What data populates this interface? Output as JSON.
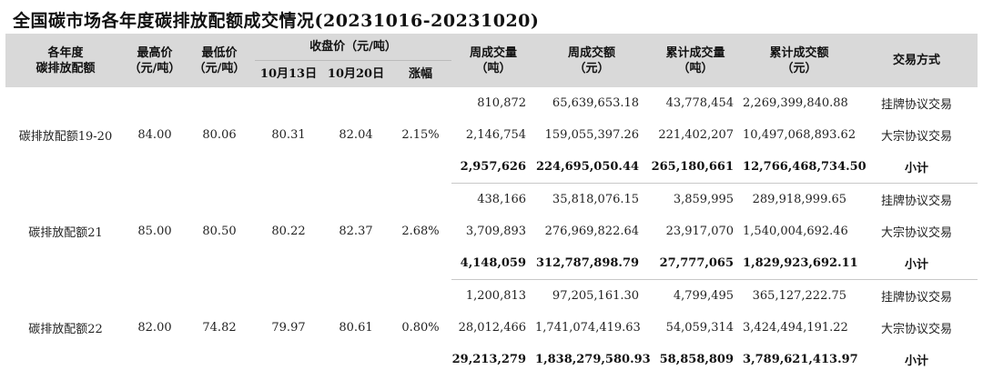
{
  "title": "全国碳市场各年度碳排放配额成交情况(20231016-20231020)",
  "headers": {
    "vintage": [
      "各年度",
      "碳排放配额"
    ],
    "high": [
      "最高价",
      "（元/吨）"
    ],
    "low": [
      "最低价",
      "（元/吨）"
    ],
    "close_group": "收盘价（元/吨）",
    "close_oct13": "10月13日",
    "close_oct20": "10月20日",
    "change": "涨幅",
    "week_volume": [
      "周成交量",
      "（吨）"
    ],
    "week_amount": [
      "周成交额",
      "（元）"
    ],
    "cum_volume": [
      "累计成交量",
      "（吨）"
    ],
    "cum_amount": [
      "累计成交额",
      "（元）"
    ],
    "method": "交易方式"
  },
  "groups": [
    {
      "name": "碳排放配额19-20",
      "high": "84.00",
      "low": "80.06",
      "close_oct13": "80.31",
      "close_oct20": "82.04",
      "change": "2.15%",
      "rows": [
        {
          "week_volume": "810,872",
          "week_amount": "65,639,653.18",
          "cum_volume": "43,778,454",
          "cum_amount": "2,269,399,840.88",
          "method": "挂牌协议交易"
        },
        {
          "week_volume": "2,146,754",
          "week_amount": "159,055,397.26",
          "cum_volume": "221,402,207",
          "cum_amount": "10,497,068,893.62",
          "method": "大宗协议交易"
        },
        {
          "week_volume": "2,957,626",
          "week_amount": "224,695,050.44",
          "cum_volume": "265,180,661",
          "cum_amount": "12,766,468,734.50",
          "method": "小计"
        }
      ]
    },
    {
      "name": "碳排放配额21",
      "high": "85.00",
      "low": "80.50",
      "close_oct13": "80.22",
      "close_oct20": "82.37",
      "change": "2.68%",
      "rows": [
        {
          "week_volume": "438,166",
          "week_amount": "35,818,076.15",
          "cum_volume": "3,859,995",
          "cum_amount": "289,918,999.65",
          "method": "挂牌协议交易"
        },
        {
          "week_volume": "3,709,893",
          "week_amount": "276,969,822.64",
          "cum_volume": "23,917,070",
          "cum_amount": "1,540,004,692.46",
          "method": "大宗协议交易"
        },
        {
          "week_volume": "4,148,059",
          "week_amount": "312,787,898.79",
          "cum_volume": "27,777,065",
          "cum_amount": "1,829,923,692.11",
          "method": "小计"
        }
      ]
    },
    {
      "name": "碳排放配额22",
      "high": "82.00",
      "low": "74.82",
      "close_oct13": "79.97",
      "close_oct20": "80.61",
      "change": "0.80%",
      "rows": [
        {
          "week_volume": "1,200,813",
          "week_amount": "97,205,161.30",
          "cum_volume": "4,799,495",
          "cum_amount": "365,127,222.75",
          "method": "挂牌协议交易"
        },
        {
          "week_volume": "28,012,466",
          "week_amount": "1,741,074,419.63",
          "cum_volume": "54,059,314",
          "cum_amount": "3,424,494,191.22",
          "method": "大宗协议交易"
        },
        {
          "week_volume": "29,213,279",
          "week_amount": "1,838,279,580.93",
          "cum_volume": "58,858,809",
          "cum_amount": "3,789,621,413.97",
          "method": "小计"
        }
      ]
    }
  ]
}
